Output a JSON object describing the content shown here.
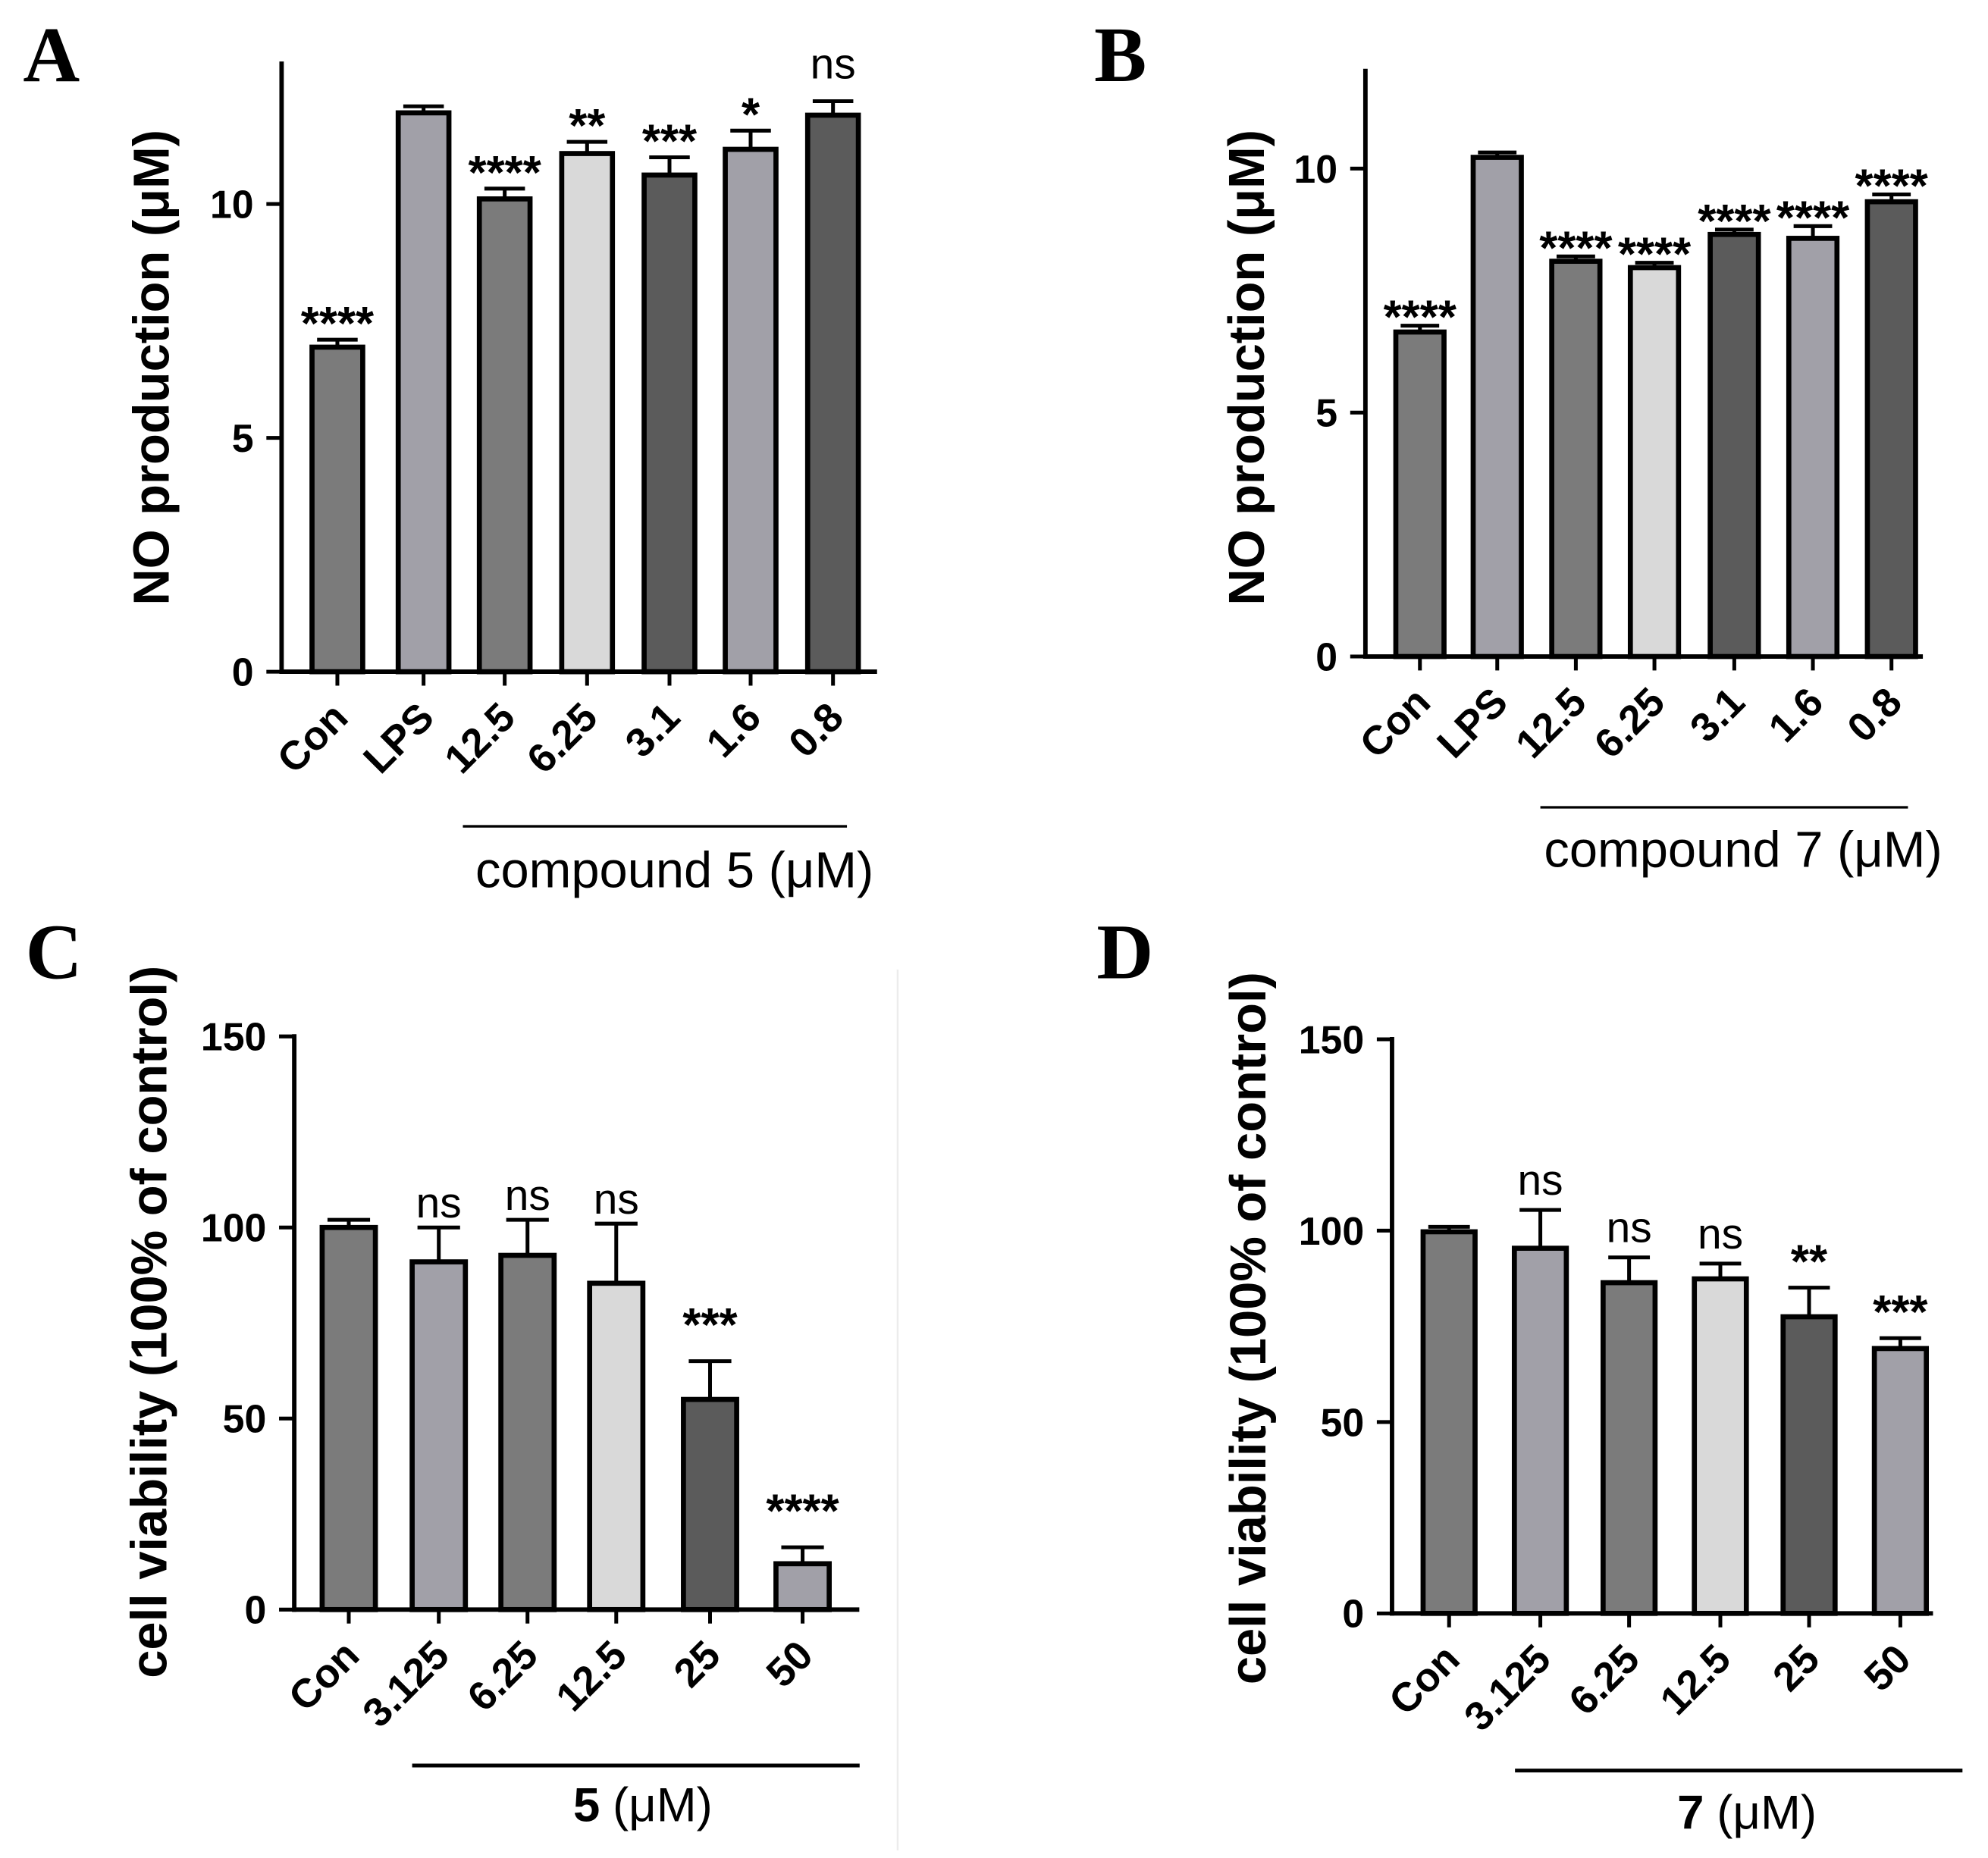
{
  "chart_data": [
    {
      "panel": "A",
      "type": "bar",
      "ylabel": "NO production (μM)",
      "xlabel": "compound 5 (μM)",
      "ylim": [
        0,
        13
      ],
      "yticks": [
        0,
        5,
        10
      ],
      "categories": [
        "Con",
        "LPS",
        "12.5",
        "6.25",
        "3.1",
        "1.6",
        "0.8"
      ],
      "values": [
        6.94,
        11.95,
        10.11,
        11.08,
        10.62,
        11.17,
        11.9
      ],
      "errors": [
        0.16,
        0.14,
        0.22,
        0.25,
        0.38,
        0.4,
        0.3
      ],
      "significance": [
        "****",
        null,
        "****",
        "**",
        "***",
        "*",
        "ns"
      ],
      "colors": [
        "#7b7b7b",
        "#a1a0a8",
        "#7b7b7b",
        "#d9d9d9",
        "#5b5b5b",
        "#a1a0a8",
        "#5b5b5b"
      ]
    },
    {
      "panel": "B",
      "type": "bar",
      "ylabel": "NO production (μM)",
      "xlabel": "compound 7 (μM)",
      "ylim": [
        0,
        12
      ],
      "yticks": [
        0,
        5,
        10
      ],
      "categories": [
        "Con",
        "LPS",
        "12.5",
        "6.25",
        "3.1",
        "1.6",
        "0.8"
      ],
      "values": [
        6.65,
        10.23,
        8.1,
        7.97,
        8.65,
        8.57,
        9.32
      ],
      "errors": [
        0.13,
        0.1,
        0.1,
        0.1,
        0.1,
        0.25,
        0.15
      ],
      "significance": [
        "****",
        null,
        "****",
        "****",
        "****",
        "****",
        "****"
      ],
      "colors": [
        "#7b7b7b",
        "#a1a0a8",
        "#7b7b7b",
        "#d9d9d9",
        "#5b5b5b",
        "#a1a0a8",
        "#5b5b5b"
      ]
    },
    {
      "panel": "C",
      "type": "bar",
      "ylabel": "cell viability (100% of control)",
      "xlabel_compound": "5",
      "xlabel_unit": "(μM)",
      "ylim": [
        0,
        150
      ],
      "yticks": [
        0,
        50,
        100,
        150
      ],
      "categories": [
        "Con",
        "3.125",
        "6.25",
        "12.5",
        "25",
        "50"
      ],
      "values": [
        100,
        91,
        92.7,
        85.4,
        55,
        12
      ],
      "errors": [
        2,
        9,
        9.3,
        15.6,
        10,
        4.3
      ],
      "significance": [
        null,
        "ns",
        "ns",
        "ns",
        "***",
        "****"
      ],
      "colors": [
        "#7b7b7b",
        "#a1a0a8",
        "#7b7b7b",
        "#d9d9d9",
        "#5b5b5b",
        "#a1a0a8"
      ]
    },
    {
      "panel": "D",
      "type": "bar",
      "ylabel": "cell viability (100% of control)",
      "xlabel_compound": "7",
      "xlabel_unit": "(μM)",
      "ylim": [
        0,
        150
      ],
      "yticks": [
        0,
        50,
        100,
        150
      ],
      "categories": [
        "Con",
        "3.125",
        "6.25",
        "12.5",
        "25",
        "50"
      ],
      "values": [
        99.7,
        95.4,
        86.4,
        87.4,
        77.5,
        69.2
      ],
      "errors": [
        1.3,
        10,
        6.6,
        4,
        7.6,
        2.7
      ],
      "significance": [
        null,
        "ns",
        "ns",
        "ns",
        "**",
        "***"
      ],
      "colors": [
        "#7b7b7b",
        "#a1a0a8",
        "#7b7b7b",
        "#d9d9d9",
        "#5b5b5b",
        "#a1a0a8"
      ]
    }
  ]
}
